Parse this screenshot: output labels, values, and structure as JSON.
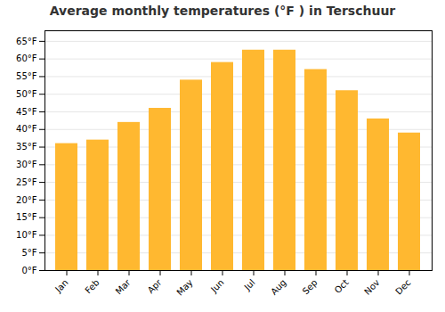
{
  "chart_data": {
    "type": "bar",
    "title": "Average monthly temperatures (°F ) in Terschuur",
    "categories": [
      "Jan",
      "Feb",
      "Mar",
      "Apr",
      "May",
      "Jun",
      "Jul",
      "Aug",
      "Sep",
      "Oct",
      "Nov",
      "Dec"
    ],
    "values": [
      36,
      37,
      42,
      46,
      54,
      59,
      62.5,
      62.5,
      57,
      51,
      43,
      39
    ],
    "color": "#FFB830",
    "ylim": [
      0,
      68
    ],
    "yticks": [
      {
        "value": 0,
        "label": "0°F"
      },
      {
        "value": 5,
        "label": "5°F"
      },
      {
        "value": 10,
        "label": "10°F"
      },
      {
        "value": 15,
        "label": "15°F"
      },
      {
        "value": 20,
        "label": "20°F"
      },
      {
        "value": 25,
        "label": "25°F"
      },
      {
        "value": 30,
        "label": "30°F"
      },
      {
        "value": 35,
        "label": "35°F"
      },
      {
        "value": 40,
        "label": "40°F"
      },
      {
        "value": 45,
        "label": "45°F"
      },
      {
        "value": 50,
        "label": "50°F"
      },
      {
        "value": 55,
        "label": "55°F"
      },
      {
        "value": 60,
        "label": "60°F"
      },
      {
        "value": 65,
        "label": "65°F"
      }
    ],
    "grid": true
  }
}
